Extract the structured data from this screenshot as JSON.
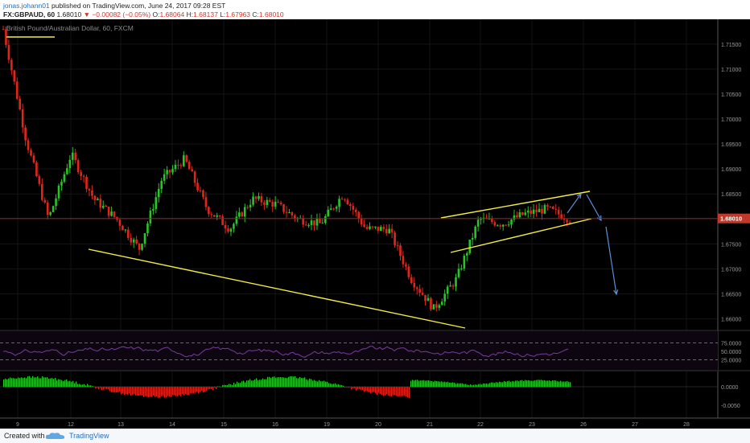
{
  "header": {
    "user": "jonas.johann01",
    "published_text": "published on TradingView.com, June 24, 2017 09:28 EST",
    "symbol": "FX:GBPAUD, 60",
    "last": "1.68010",
    "change": "▼ −0.00082 (−0.05%)",
    "o_label": "O:",
    "o_val": "1.68064",
    "h_label": "H:",
    "h_val": "1.68137",
    "l_label": "L:",
    "l_val": "1.67963",
    "c_label": "C:",
    "c_val": "1.68010"
  },
  "chart": {
    "watermark": "British Pound/Australian Dollar, 60, FXCM",
    "price_axis": [
      "1.71500",
      "1.71000",
      "1.70500",
      "1.70000",
      "1.69500",
      "1.69000",
      "1.68500",
      "1.68010",
      "1.67500",
      "1.67000",
      "1.66500",
      "1.66000"
    ],
    "price_tag": "1.68010",
    "rsi_axis": [
      "75.0000",
      "50.0000",
      "25.0000"
    ],
    "macd_axis": [
      "0.0000",
      "-0.0050"
    ],
    "x_axis": [
      "9",
      "12",
      "13",
      "14",
      "15",
      "16",
      "19",
      "20",
      "21",
      "22",
      "23",
      "26",
      "27",
      "28"
    ],
    "colors": {
      "bull": "#26c626",
      "bear": "#e0261b",
      "trend": "#f5ec42",
      "arrow": "#5b8fd6",
      "rsi": "#7a3aa0",
      "price_line": "#a01a1a"
    }
  },
  "chart_data": {
    "type": "candlestick",
    "symbol": "FX:GBPAUD",
    "timeframe": "60",
    "last_close": 1.6801,
    "ylim": [
      1.658,
      1.719
    ],
    "price_path_points": [
      {
        "x": "9",
        "y": 1.718
      },
      {
        "x": "9",
        "y": 1.696
      },
      {
        "x": "9",
        "y": 1.68
      },
      {
        "x": "12",
        "y": 1.693
      },
      {
        "x": "12",
        "y": 1.684
      },
      {
        "x": "12",
        "y": 1.68
      },
      {
        "x": "13",
        "y": 1.674
      },
      {
        "x": "13",
        "y": 1.688
      },
      {
        "x": "14",
        "y": 1.692
      },
      {
        "x": "14",
        "y": 1.682
      },
      {
        "x": "15",
        "y": 1.678
      },
      {
        "x": "15",
        "y": 1.684
      },
      {
        "x": "16",
        "y": 1.683
      },
      {
        "x": "16",
        "y": 1.68
      },
      {
        "x": "19",
        "y": 1.679
      },
      {
        "x": "19",
        "y": 1.685
      },
      {
        "x": "19",
        "y": 1.678
      },
      {
        "x": "20",
        "y": 1.678
      },
      {
        "x": "20",
        "y": 1.668
      },
      {
        "x": "20",
        "y": 1.662
      },
      {
        "x": "21",
        "y": 1.668
      },
      {
        "x": "21",
        "y": 1.68
      },
      {
        "x": "22",
        "y": 1.679
      },
      {
        "x": "22",
        "y": 1.681
      },
      {
        "x": "23",
        "y": 1.682
      },
      {
        "x": "23",
        "y": 1.68
      }
    ],
    "rsi": {
      "upper": 75,
      "middle": 50,
      "lower": 25
    },
    "macd": {
      "zero": 0,
      "level": -0.005
    },
    "annotations": [
      "descending support trendline",
      "rising wedge/channel",
      "projected up then down arrows"
    ]
  }
}
